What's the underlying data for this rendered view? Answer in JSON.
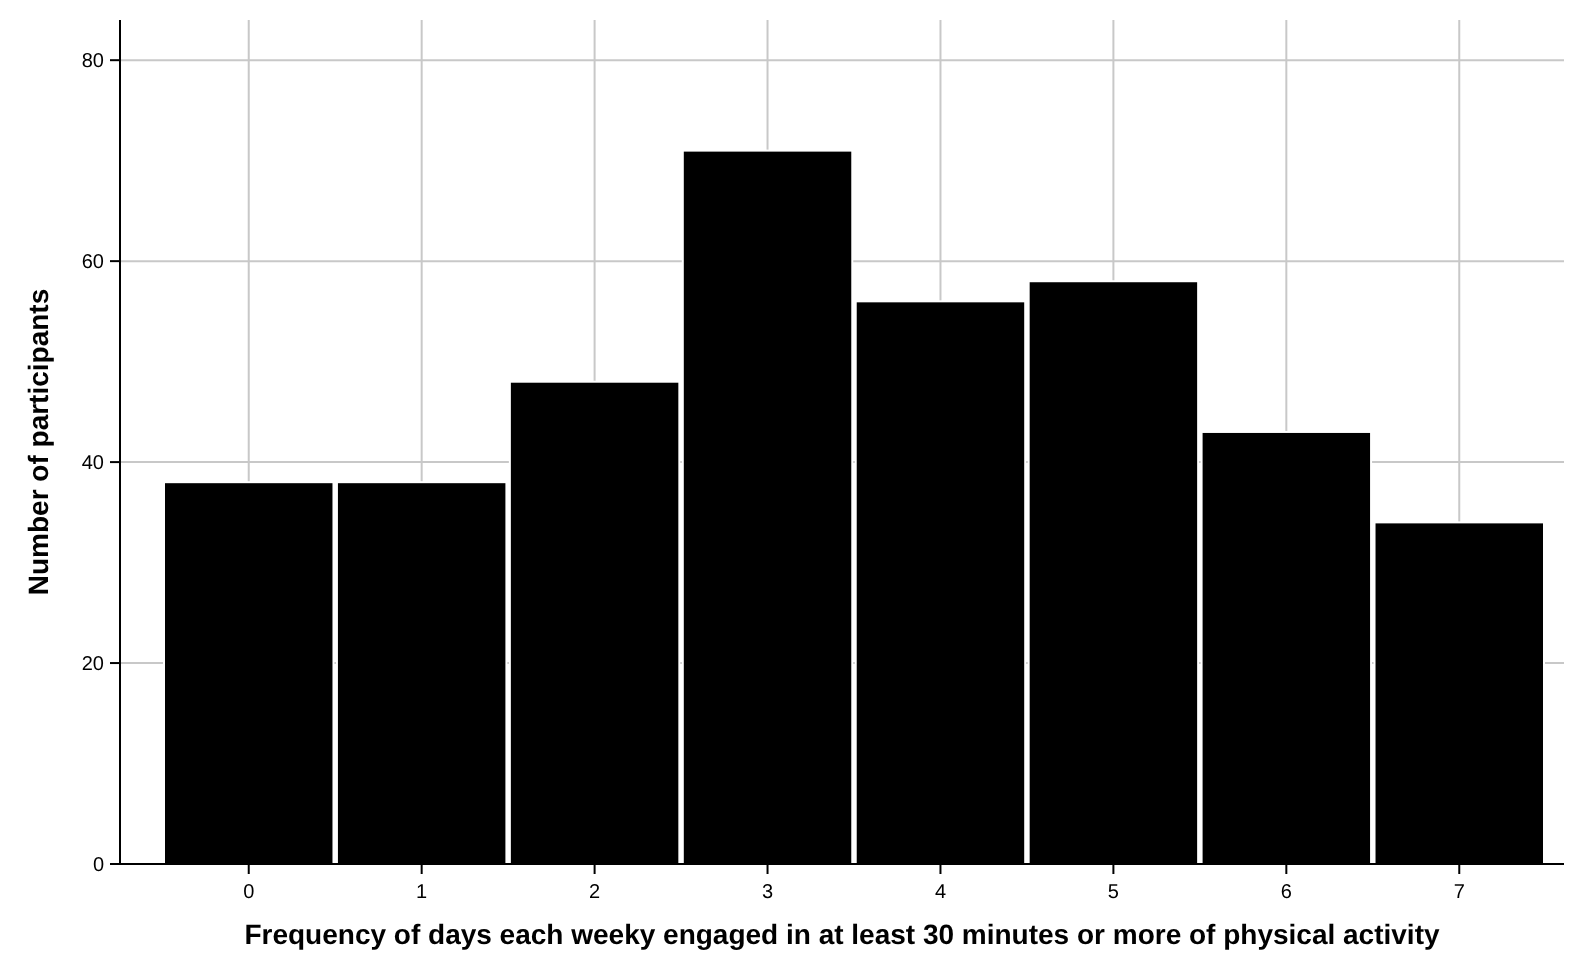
{
  "chart_data": {
    "type": "bar",
    "xlabel": "Frequency of days each weeky engaged in at least 30 minutes or more of physical activity",
    "ylabel": "Number of participants",
    "categories": [
      "0",
      "1",
      "2",
      "3",
      "4",
      "5",
      "6",
      "7"
    ],
    "values": [
      38,
      38,
      48,
      71,
      56,
      58,
      43,
      34
    ],
    "color": "#000000",
    "ylim": [
      0,
      84
    ],
    "yticks": [
      0,
      20,
      40,
      60,
      80
    ],
    "grid": true
  }
}
